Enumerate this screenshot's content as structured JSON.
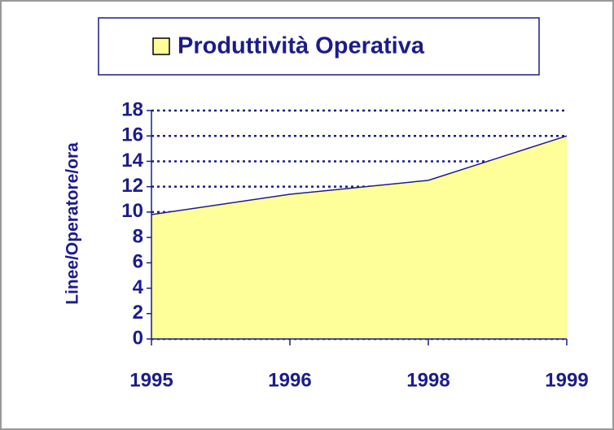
{
  "chart_data": {
    "type": "area",
    "categories": [
      "1995",
      "1996",
      "1998",
      "1999"
    ],
    "series": [
      {
        "name": "Produttività Operativa",
        "color": "#ffff99",
        "values": [
          9.8,
          11.4,
          12.5,
          16
        ]
      }
    ],
    "y_label": "Linee/Operatore/ora",
    "ylim": [
      0,
      18
    ],
    "yticks": [
      0,
      2,
      4,
      6,
      8,
      10,
      12,
      14,
      16,
      18
    ],
    "grid": true
  }
}
